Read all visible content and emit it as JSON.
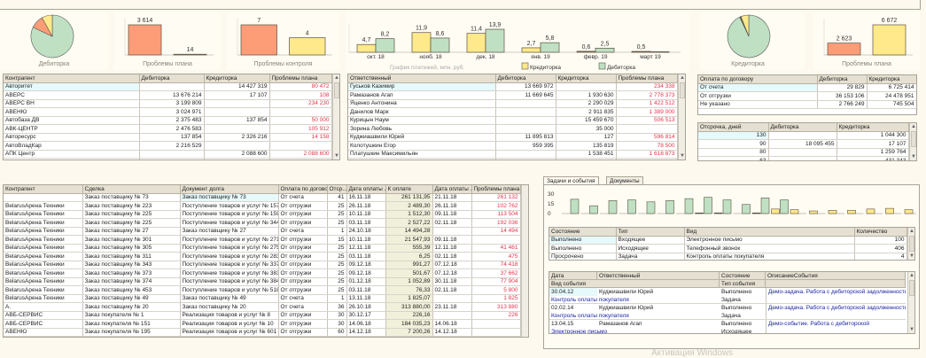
{
  "widgets": {
    "debit_pie": {
      "label": "Дебиторка",
      "slices": [
        {
          "share": 0.82,
          "color": "#bfe0c3"
        },
        {
          "share": 0.1,
          "color": "#fd9d78"
        },
        {
          "share": 0.08,
          "color": "#ffe98b"
        }
      ]
    },
    "plan_problems_left": {
      "label": "Проблемы плана",
      "values": [
        3614,
        14
      ],
      "value_labels": [
        "3 614",
        "14"
      ],
      "colors": [
        "#fd9d78",
        "#ffe98b"
      ]
    },
    "control_problems": {
      "label": "Проблемы контроля",
      "values": [
        7,
        4
      ],
      "value_labels": [
        "7",
        "4"
      ],
      "colors": [
        "#fd9d78",
        "#ffe98b"
      ]
    },
    "credit_pie": {
      "label": "Кредиторка",
      "slices": [
        {
          "share": 0.93,
          "color": "#bfe0c3"
        },
        {
          "share": 0.01,
          "color": "#6b5a2a"
        },
        {
          "share": 0.06,
          "color": "#ffe98b"
        }
      ]
    },
    "plan_problems_right": {
      "label": "Проблемы плана",
      "values": [
        2623,
        6672
      ],
      "value_labels": [
        "2 623",
        "6 672"
      ],
      "colors": [
        "#fd9d78",
        "#ffe98b"
      ]
    }
  },
  "chart_data": [
    {
      "type": "bar",
      "title": "График платежей, млн. руб.",
      "categories": [
        "окт. 18",
        "нояб. 18",
        "дек. 18",
        "янв. 19",
        "февр. 19",
        "март 19"
      ],
      "series": [
        {
          "name": "Кредиторка",
          "color": "#ffe98b",
          "values": [
            4.7,
            11.9,
            11.4,
            2.7,
            0.6,
            0.5
          ],
          "labels": [
            "4,7",
            "11,9",
            "11,4",
            "2,7",
            "0,6",
            "0,5"
          ]
        },
        {
          "name": "Дебиторка",
          "color": "#bfe0c3",
          "values": [
            8.2,
            8.6,
            13.9,
            5.8,
            2.5,
            0
          ],
          "labels": [
            "8,2",
            "8,6",
            "13,9",
            "5,8",
            "2,5",
            ""
          ]
        }
      ],
      "legend": "bottom"
    },
    {
      "type": "bar",
      "yticks": [
        "30",
        "15",
        "0"
      ],
      "ylim": [
        0,
        30
      ],
      "series": [
        {
          "color": "#ffe98b",
          "values": [
            0,
            0,
            0,
            0,
            0,
            0,
            0,
            1,
            1,
            0,
            1,
            7,
            6,
            4,
            5,
            5,
            7,
            8,
            6
          ]
        },
        {
          "color": "#bfe0c3",
          "values": [
            22,
            12,
            20,
            21,
            18,
            20,
            23,
            25,
            21,
            14,
            24,
            21,
            0,
            0,
            0,
            0,
            0,
            0,
            0
          ]
        }
      ]
    }
  ],
  "tables": {
    "counterparty": {
      "columns": [
        "Контрагент",
        "Дебиторка",
        "Кредиторка",
        "Проблемы плана"
      ],
      "rows": [
        [
          "Авторитет",
          "",
          "14 427 319",
          "80 472"
        ],
        [
          "АВЕРС",
          "13 676 214",
          "17 107",
          "108"
        ],
        [
          "АВЕРС ВН",
          "3 199 809",
          "",
          "234 230"
        ],
        [
          "АВЕНЮ",
          "3 024 971",
          "",
          ""
        ],
        [
          "Автобаза ДВ",
          "2 375 483",
          "137 854",
          "50 000"
        ],
        [
          "АВК-ЦЕНТР",
          "2 476 583",
          "",
          "105 912"
        ],
        [
          "Авторесурс",
          "137 854",
          "2 326 216",
          "14 158"
        ],
        [
          "АвтоВладКар",
          "2 216 529",
          "",
          ""
        ],
        [
          "АПК Центр",
          "",
          "2 088 600",
          "2 088 600"
        ],
        [
          "Автолизинг Рент",
          "1 947 763",
          "",
          ""
        ]
      ]
    },
    "responsible": {
      "columns": [
        "Ответственный",
        "Дебиторка",
        "Кредиторка",
        "Проблемы плана"
      ],
      "rows": [
        [
          "Гуськов Казимир",
          "13 669 972",
          "",
          "234 338"
        ],
        [
          "Рамазанов Агап",
          "11 669 645",
          "1 930 630",
          "2 778 373"
        ],
        [
          "Яценко Антонина",
          "",
          "2 290 029",
          "1 422 512"
        ],
        [
          "Данилов Марк",
          "",
          "2 911 835",
          "1 389 000"
        ],
        [
          "Курицын Наум",
          "",
          "15 459 670",
          "506 513"
        ],
        [
          "Зорина Любовь",
          "",
          "35 000",
          ""
        ],
        [
          "Куджиашвили Юрий",
          "11 895 813",
          "127",
          "596 814"
        ],
        [
          "Колотушкин Егор",
          "959 395",
          "135 819",
          "78 500"
        ],
        [
          "Платушкин Максимильян",
          "",
          "1 538 451",
          "1 618 873"
        ],
        [
          "Кашин Василий",
          "",
          "30 487",
          ""
        ]
      ]
    },
    "payment_terms": {
      "columns": [
        "Оплата по договору",
        "Дебиторка",
        "Кредиторка"
      ],
      "rows": [
        [
          "От счета",
          "29 829",
          "6 725 414"
        ],
        [
          "От отгрузки",
          "36 153 106",
          "24 478 951"
        ],
        [
          "Не указано",
          "2 766 249",
          "745 504"
        ]
      ]
    },
    "deferral": {
      "columns": [
        "Отсрочка, дней",
        "Дебиторка",
        "Кредиторка"
      ],
      "rows": [
        [
          "130",
          "",
          "1 044 300"
        ],
        [
          "90",
          "18 095 455",
          "17 107"
        ],
        [
          "80",
          "",
          "1 259 764"
        ],
        [
          "63",
          "",
          "431 343"
        ]
      ]
    },
    "deals": {
      "columns": [
        "Контрагент",
        "Сделка",
        "Документ долга",
        "Оплата по договору",
        "Отср...",
        "Дата оплаты ...",
        "К оплате",
        "Дата оплаты ...",
        "Проблемы плана"
      ],
      "rows": [
        [
          "",
          "Заказ поставщику № 73",
          "Заказ поставщику № 73",
          "От счета",
          "41",
          "16.11.18",
          "261 131,95",
          "21.11.18",
          "261 132"
        ],
        [
          "BelarusАрена Техники",
          "Заказ поставщику № 223",
          "Поступление товаров и услуг № 157",
          "От отгрузки",
          "25",
          "26.11.18",
          "2 489,30",
          "26.11.18",
          "102 762"
        ],
        [
          "BelarusАрена Техники",
          "Заказ поставщику № 225",
          "Поступление товаров и услуг № 159",
          "От отгрузки",
          "25",
          "10.11.18",
          "1 512,30",
          "09.11.18",
          "113 504"
        ],
        [
          "BelarusАрена Техники",
          "Заказ поставщику № 225",
          "Поступление товаров и услуг № 344",
          "От отгрузки",
          "25",
          "03.11.18",
          "2 527,22",
          "02.11.18",
          "192 036"
        ],
        [
          "BelarusАрена Техники",
          "Заказ поставщику № 27",
          "Заказ поставщику № 27",
          "От счета",
          "1",
          "24.10.18",
          "14 494,28",
          "",
          "14 494"
        ],
        [
          "BelarusАрена Техники",
          "Заказ поставщику № 301",
          "Поступление товаров и услуг № 271",
          "От отгрузки",
          "15",
          "10.11.18",
          "21 547,93",
          "09.11.18",
          ""
        ],
        [
          "BelarusАрена Техники",
          "Заказ поставщику № 305",
          "Поступление товаров и услуг № 275",
          "От отгрузки",
          "25",
          "12.11.18",
          "555,39",
          "12.11.18",
          "41 461"
        ],
        [
          "BelarusАрена Техники",
          "Заказ поставщику № 311",
          "Поступление товаров и услуг № 283",
          "От отгрузки",
          "25",
          "03.11.18",
          "6,25",
          "02.11.18",
          "475"
        ],
        [
          "BelarusАрена Техники",
          "Заказ поставщику № 343",
          "Поступление товаров и услуг № 337",
          "От отгрузки",
          "25",
          "09.12.18",
          "991,27",
          "07.12.18",
          "74 418"
        ],
        [
          "BelarusАрена Техники",
          "Заказ поставщику № 373",
          "Поступление товаров и услуг № 383",
          "От отгрузки",
          "25",
          "09.12.18",
          "501,67",
          "07.12.18",
          "37 662"
        ],
        [
          "BelarusАрена Техники",
          "Заказ поставщику № 374",
          "Поступление товаров и услуг № 384",
          "От отгрузки",
          "25",
          "01.12.18",
          "1 052,89",
          "30.11.18",
          "77 904"
        ],
        [
          "BelarusАрена Техники",
          "Заказ поставщику № 453",
          "Поступление товаров и услуг № 518",
          "От отгрузки",
          "25",
          "03.11.18",
          "76,33",
          "02.11.18",
          "5 800"
        ],
        [
          "BelarusАрена Техники",
          "Заказ поставщику № 49",
          "Заказ поставщику № 49",
          "От счета",
          "1",
          "13.11.18",
          "1 825,07",
          "",
          "1 825"
        ],
        [
          "А.",
          "Заказ поставщику № 20",
          "Заказ поставщику № 20",
          "От счета",
          "36",
          "26.10.18",
          "313 880,00",
          "23.11.18",
          "313 880"
        ],
        [
          "АВБ-СЕРВИС",
          "Заказ покупателя № 1",
          "Реализация товаров и услуг № 8",
          "От отгрузки",
          "30",
          "30.12.17",
          "226,16",
          "",
          "226"
        ],
        [
          "АВБ-СЕРВИС",
          "Заказ покупателя № 151",
          "Реализация товаров и услуг № 10",
          "От отгрузки",
          "30",
          "14.06.18",
          "184 035,23",
          "14.06.18",
          ""
        ],
        [
          "АВЕНЮ",
          "Заказ покупателя № 195",
          "Реализация товаров и услуг № 601",
          "От отгрузки",
          "60",
          "14.12.18",
          "7 200,26",
          "14.12.18",
          ""
        ]
      ]
    },
    "task_states": {
      "columns": [
        "Состояние",
        "Тип",
        "Вид",
        "Количество"
      ],
      "rows": [
        [
          "Выполнено",
          "Входящее",
          "Электронное письмо",
          "100"
        ],
        [
          "Выполнено",
          "Исходящее",
          "Телефонный звонок",
          "406"
        ],
        [
          "Просрочено",
          "Задача",
          "Контроль оплаты покупателя",
          "4"
        ]
      ]
    }
  },
  "tabs": [
    "Задачи и события",
    "Документы"
  ],
  "events": {
    "columns": {
      "date": "Дата",
      "responsible": "Ответственный",
      "state": "Состояние",
      "description": "ОписаниеСобытия",
      "kind": "Вид события",
      "type": "Тип события"
    },
    "rows": [
      {
        "date": "30.04.12",
        "responsible": "Куджиашвили Юрий",
        "state": "Выполнено",
        "description": "Демо-задача. Работа с дебиторской задолженностью",
        "kind": "Контроль оплаты покупателя",
        "type": "Задача"
      },
      {
        "date": "02.02.14",
        "responsible": "Куджиашвили Юрий",
        "state": "Выполнено",
        "description": "Демо-задача. Работа с дебиторской задолженностью",
        "kind": "Контроль оплаты покупателя",
        "type": "Задача"
      },
      {
        "date": "13.04.15",
        "responsible": "Рамазанов Агап",
        "state": "Выполнено",
        "description": "Демо-событие. Работа с дебиторской",
        "kind": "Электронное письмо",
        "type": "Исходящее"
      }
    ]
  },
  "watermark": "Активация Windows"
}
